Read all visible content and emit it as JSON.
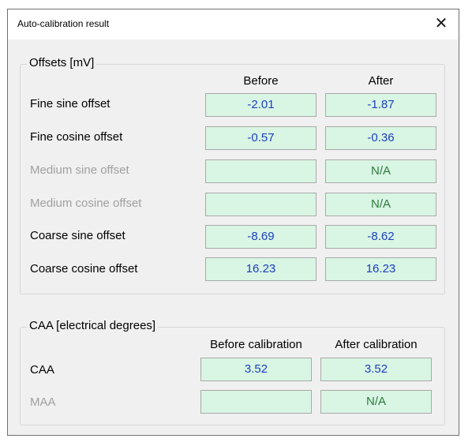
{
  "window": {
    "title": "Auto-calibration result",
    "close_glyph": "✕"
  },
  "offsets": {
    "group_title": "Offsets [mV]",
    "col_before": "Before",
    "col_after": "After",
    "rows": [
      {
        "label": "Fine sine offset",
        "before": "-2.01",
        "after": "-1.87",
        "enabled": true
      },
      {
        "label": "Fine cosine offset",
        "before": "-0.57",
        "after": "-0.36",
        "enabled": true
      },
      {
        "label": "Medium sine offset",
        "before": "",
        "after": "N/A",
        "enabled": false
      },
      {
        "label": "Medium cosine offset",
        "before": "",
        "after": "N/A",
        "enabled": false
      },
      {
        "label": "Coarse sine offset",
        "before": "-8.69",
        "after": "-8.62",
        "enabled": true
      },
      {
        "label": "Coarse cosine offset",
        "before": "16.23",
        "after": "16.23",
        "enabled": true
      }
    ]
  },
  "caa": {
    "group_title": "CAA  [electrical degrees]",
    "col_before": "Before calibration",
    "col_after": "After calibration",
    "rows": [
      {
        "label": "CAA",
        "before": "3.52",
        "after": "3.52",
        "enabled": true
      },
      {
        "label": "MAA",
        "before": "",
        "after": "N/A",
        "enabled": false
      }
    ]
  },
  "colors": {
    "field_bg": "#d9f5e4",
    "value_text": "#1a3fbf",
    "na_text": "#2c7a3b",
    "disabled_label": "#a0a0a0"
  }
}
